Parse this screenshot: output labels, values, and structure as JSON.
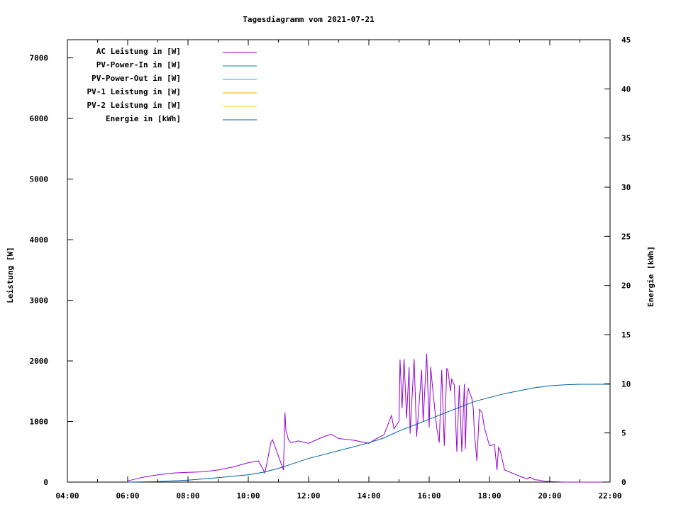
{
  "chart_data": {
    "type": "line",
    "title": "Tagesdiagramm vom 2021-07-21",
    "ylabel": "Leistung [W]",
    "y2label": "Energie [kWh]",
    "xlim": [
      "04:00",
      "22:00"
    ],
    "ylim": [
      0,
      7300
    ],
    "y2lim": [
      0,
      45
    ],
    "x_ticks": [
      "04:00",
      "06:00",
      "08:00",
      "10:00",
      "12:00",
      "14:00",
      "16:00",
      "18:00",
      "20:00",
      "22:00"
    ],
    "y_ticks": [
      0,
      1000,
      2000,
      3000,
      4000,
      5000,
      6000,
      7000
    ],
    "y2_ticks": [
      0,
      5,
      10,
      15,
      20,
      25,
      30,
      35,
      40,
      45
    ],
    "grid": false,
    "legend_position": "top-left",
    "series": [
      {
        "name": "AC Leistung in [W]",
        "color": "#9400d3",
        "axis": "left",
        "x": [
          "06:00",
          "06:30",
          "07:00",
          "07:30",
          "08:00",
          "08:30",
          "09:00",
          "09:30",
          "10:00",
          "10:20",
          "10:30",
          "10:33",
          "10:45",
          "10:48",
          "10:50",
          "11:10",
          "11:13",
          "11:15",
          "11:20",
          "11:25",
          "11:40",
          "12:00",
          "12:30",
          "12:45",
          "13:00",
          "13:30",
          "14:00",
          "14:15",
          "14:30",
          "14:45",
          "14:50",
          "15:00",
          "15:02",
          "15:06",
          "15:10",
          "15:12",
          "15:15",
          "15:20",
          "15:22",
          "15:30",
          "15:35",
          "15:45",
          "15:48",
          "15:55",
          "16:00",
          "16:03",
          "16:08",
          "16:15",
          "16:20",
          "16:25",
          "16:30",
          "16:35",
          "16:38",
          "16:42",
          "16:45",
          "16:50",
          "16:55",
          "17:00",
          "17:05",
          "17:10",
          "17:12",
          "17:15",
          "17:18",
          "17:20",
          "17:25",
          "17:28",
          "17:30",
          "17:35",
          "17:40",
          "17:45",
          "17:50",
          "18:00",
          "18:10",
          "18:15",
          "18:18",
          "18:22",
          "18:30",
          "18:45",
          "19:00",
          "19:15",
          "19:20",
          "19:30",
          "19:40",
          "19:50",
          "20:00",
          "20:15",
          "20:20",
          "20:30",
          "20:40",
          "20:50",
          "21:00",
          "21:30",
          "21:45"
        ],
        "values": [
          20,
          80,
          120,
          150,
          160,
          170,
          200,
          250,
          320,
          350,
          200,
          150,
          650,
          700,
          660,
          200,
          1150,
          850,
          700,
          650,
          680,
          640,
          750,
          790,
          720,
          690,
          640,
          720,
          780,
          1100,
          880,
          1000,
          2020,
          1220,
          2030,
          1650,
          1050,
          1900,
          800,
          2030,
          750,
          1850,
          1000,
          2120,
          900,
          1900,
          1450,
          900,
          650,
          1850,
          600,
          1880,
          1820,
          1500,
          1700,
          1600,
          500,
          1600,
          500,
          1620,
          550,
          1400,
          1550,
          1480,
          1380,
          1200,
          800,
          350,
          1200,
          1150,
          900,
          600,
          620,
          200,
          580,
          500,
          200,
          150,
          100,
          50,
          80,
          40,
          30,
          15,
          8,
          5,
          2,
          0,
          0,
          0,
          0,
          0,
          0
        ]
      },
      {
        "name": "PV-Power-In in [W]",
        "color": "#008b8b",
        "axis": "left",
        "x": [],
        "values": []
      },
      {
        "name": "PV-Power-Out in [W]",
        "color": "#00bfff",
        "axis": "left",
        "x": [],
        "values": []
      },
      {
        "name": "PV-1 Leistung in [W]",
        "color": "#ffa500",
        "axis": "left",
        "x": [],
        "values": []
      },
      {
        "name": "PV-2 Leistung in [W]",
        "color": "#ffd700",
        "axis": "left",
        "x": [],
        "values": []
      },
      {
        "name": "Energie in [kWh]",
        "color": "#005fa0",
        "axis": "right",
        "x": [
          "06:00",
          "07:00",
          "08:00",
          "09:00",
          "10:00",
          "10:30",
          "11:00",
          "11:30",
          "12:00",
          "12:30",
          "13:00",
          "13:30",
          "14:00",
          "14:30",
          "15:00",
          "15:30",
          "16:00",
          "16:30",
          "17:00",
          "17:30",
          "18:00",
          "18:30",
          "19:00",
          "19:30",
          "20:00",
          "20:30",
          "21:00",
          "21:30",
          "22:00"
        ],
        "values": [
          0,
          0.05,
          0.2,
          0.45,
          0.75,
          1.0,
          1.4,
          1.9,
          2.4,
          2.8,
          3.2,
          3.6,
          4.0,
          4.5,
          5.2,
          5.8,
          6.4,
          7.0,
          7.6,
          8.2,
          8.6,
          9.0,
          9.3,
          9.6,
          9.8,
          9.9,
          9.95,
          9.95,
          9.95
        ]
      }
    ]
  }
}
